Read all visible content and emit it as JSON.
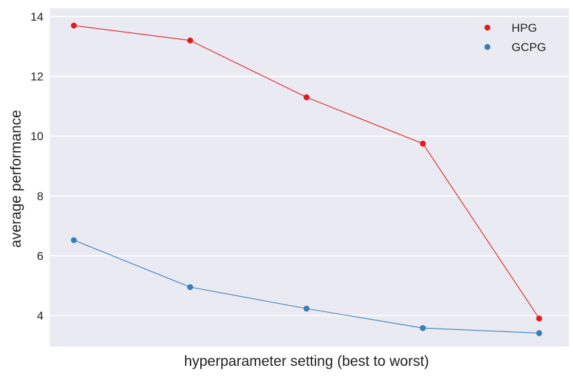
{
  "chart_data": {
    "type": "line",
    "title": "",
    "xlabel": "hyperparameter setting (best to worst)",
    "ylabel": "average performance",
    "x": [
      1,
      2,
      3,
      4,
      5
    ],
    "x_tick_labels_shown": false,
    "ylim": [
      3.0,
      14.3
    ],
    "yticks": [
      4,
      6,
      8,
      10,
      12,
      14
    ],
    "grid": true,
    "legend_position": "top-right",
    "background_color": "#eaeaf2",
    "series": [
      {
        "name": "HPG",
        "color": "#e41a1c",
        "values": [
          13.7,
          13.2,
          11.3,
          9.75,
          3.9
        ]
      },
      {
        "name": "GCPG",
        "color": "#377eb8",
        "values": [
          6.52,
          4.95,
          4.23,
          3.58,
          3.41
        ]
      }
    ]
  }
}
